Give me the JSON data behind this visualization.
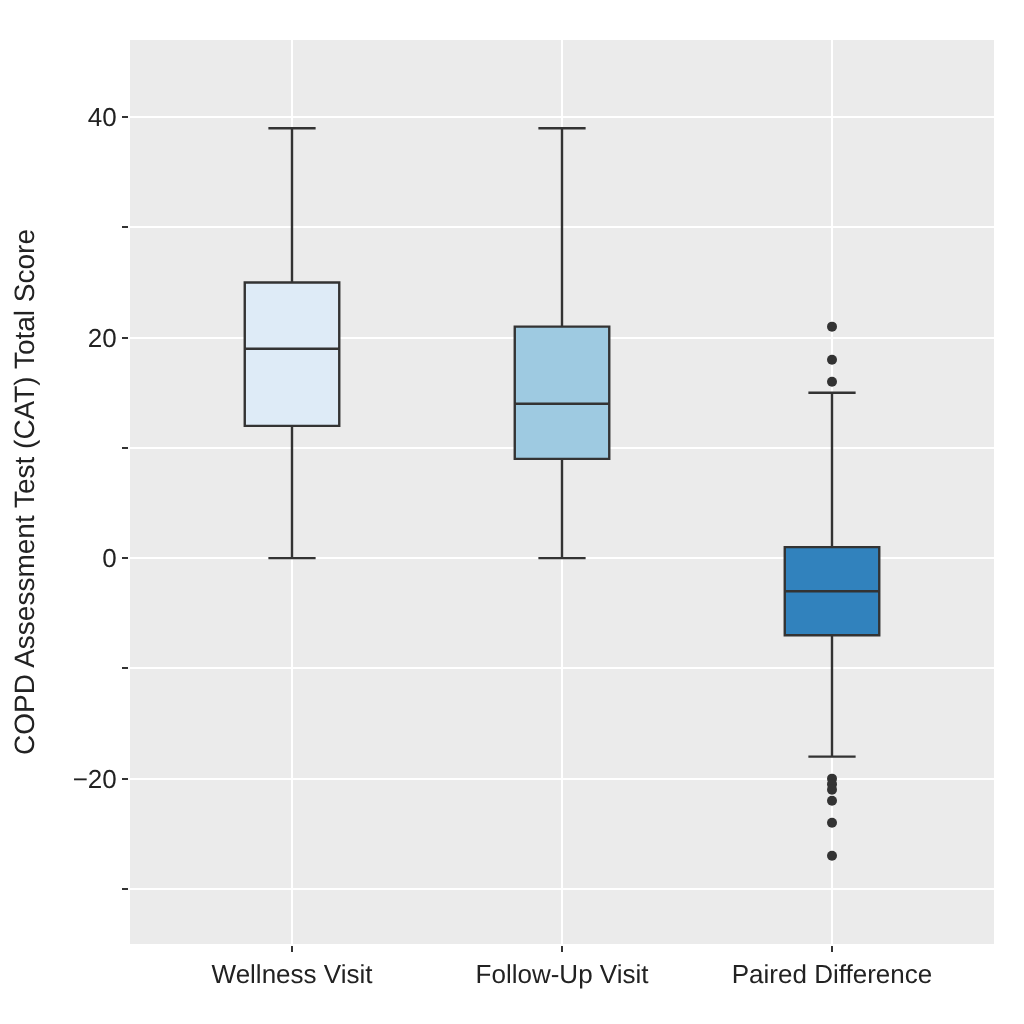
{
  "chart_data": {
    "type": "box",
    "ylabel": "COPD Assessment Test (CAT) Total Score",
    "categories": [
      "Wellness Visit",
      "Follow-Up Visit",
      "Paired Difference"
    ],
    "colors": [
      "#deebf7",
      "#9ecae1",
      "#3182bd"
    ],
    "boxes": [
      {
        "low": 0,
        "q1": 12,
        "median": 19,
        "q3": 25,
        "high": 39
      },
      {
        "low": 0,
        "q1": 9,
        "median": 14,
        "q3": 21,
        "high": 39
      },
      {
        "low": -18,
        "q1": -7,
        "median": -3,
        "q3": 1,
        "high": 15,
        "outliers": [
          21,
          18,
          16,
          -20,
          -20.5,
          -21,
          -22,
          -24,
          -27
        ]
      }
    ],
    "ylim": [
      -35,
      47
    ],
    "yticks": [
      {
        "value": -30,
        "label": null
      },
      -20,
      {
        "value": -10,
        "label": null
      },
      0,
      {
        "value": 10,
        "label": null
      },
      20,
      {
        "value": 30,
        "label": null
      },
      40
    ],
    "grid": true
  }
}
